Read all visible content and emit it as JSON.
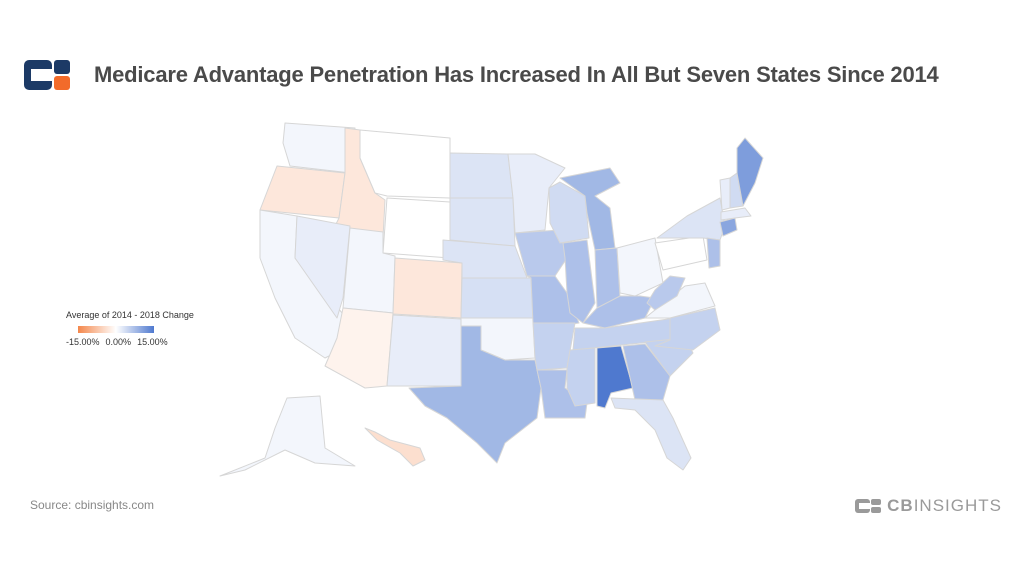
{
  "header": {
    "title": "Medicare Advantage Penetration Has Increased In All But Seven States Since 2014"
  },
  "legend": {
    "title": "Average of 2014 - 2018 Change",
    "min_label": "-15.00%",
    "mid_label": "0.00%",
    "max_label": "15.00%",
    "colors": {
      "negative": "#f4874b",
      "neutral": "#ffffff",
      "positive": "#4f79cf"
    }
  },
  "source": "Source: cbinsights.com",
  "brand": {
    "part1": "CB",
    "part2": "INSIGHTS"
  },
  "map_data": {
    "type": "choropleth",
    "scale": {
      "min": -15,
      "mid": 0,
      "max": 15
    },
    "states": [
      {
        "state": "WA",
        "value": 1
      },
      {
        "state": "OR",
        "value": -3
      },
      {
        "state": "ID",
        "value": -3
      },
      {
        "state": "CA",
        "value": 1
      },
      {
        "state": "NV",
        "value": 2
      },
      {
        "state": "UT",
        "value": 1
      },
      {
        "state": "AZ",
        "value": -1.5
      },
      {
        "state": "MT",
        "value": 0
      },
      {
        "state": "WY",
        "value": 0
      },
      {
        "state": "CO",
        "value": -3
      },
      {
        "state": "NM",
        "value": 2
      },
      {
        "state": "ND",
        "value": 3
      },
      {
        "state": "SD",
        "value": 3
      },
      {
        "state": "NE",
        "value": 3
      },
      {
        "state": "KS",
        "value": 3.5
      },
      {
        "state": "OK",
        "value": 1
      },
      {
        "state": "TX",
        "value": 8
      },
      {
        "state": "MN",
        "value": 2
      },
      {
        "state": "IA",
        "value": 6
      },
      {
        "state": "MO",
        "value": 7
      },
      {
        "state": "AR",
        "value": 5
      },
      {
        "state": "LA",
        "value": 7
      },
      {
        "state": "WI",
        "value": 4
      },
      {
        "state": "IL",
        "value": 7
      },
      {
        "state": "MI",
        "value": 8
      },
      {
        "state": "IN",
        "value": 7
      },
      {
        "state": "OH",
        "value": 1
      },
      {
        "state": "KY",
        "value": 7
      },
      {
        "state": "TN",
        "value": 5
      },
      {
        "state": "MS",
        "value": 5
      },
      {
        "state": "AL",
        "value": 15
      },
      {
        "state": "GA",
        "value": 7
      },
      {
        "state": "FL",
        "value": 3
      },
      {
        "state": "SC",
        "value": 5
      },
      {
        "state": "NC",
        "value": 5
      },
      {
        "state": "VA",
        "value": 1
      },
      {
        "state": "WV",
        "value": 6
      },
      {
        "state": "PA",
        "value": 0
      },
      {
        "state": "NY",
        "value": 3
      },
      {
        "state": "NJ",
        "value": 7
      },
      {
        "state": "CT",
        "value": 10
      },
      {
        "state": "MA",
        "value": 2
      },
      {
        "state": "VT",
        "value": 2
      },
      {
        "state": "NH",
        "value": 4
      },
      {
        "state": "ME",
        "value": 11
      },
      {
        "state": "AK",
        "value": 1
      },
      {
        "state": "HI",
        "value": -4
      }
    ]
  }
}
